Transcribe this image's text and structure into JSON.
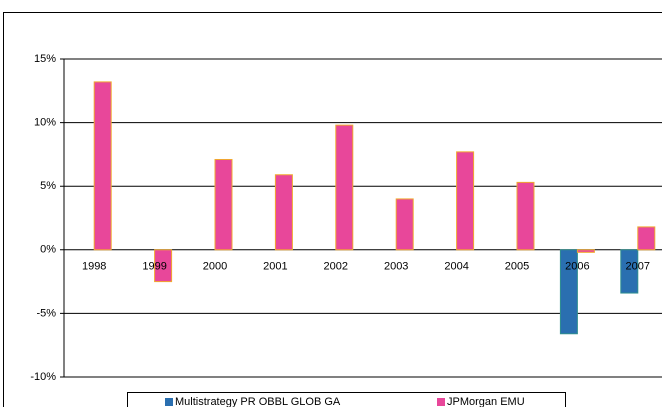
{
  "chart_data": {
    "type": "bar",
    "categories": [
      "1998",
      "1999",
      "2000",
      "2001",
      "2002",
      "2003",
      "2004",
      "2005",
      "2006",
      "2007"
    ],
    "series": [
      {
        "name": "Multistrategy PR OBBL GLOB GA",
        "color": "#2a6fb0",
        "border": "#2f8f8f",
        "values": [
          null,
          null,
          null,
          null,
          null,
          null,
          null,
          null,
          -6.6,
          -3.4
        ]
      },
      {
        "name": "JPMorgan EMU",
        "color": "#e8479a",
        "border": "#f0a830",
        "values": [
          13.2,
          -2.5,
          7.1,
          5.9,
          9.8,
          4.0,
          7.7,
          5.3,
          -0.2,
          1.8
        ]
      }
    ],
    "ylim": [
      -10,
      15
    ],
    "yticks": [
      {
        "value": -10,
        "label": "-10%"
      },
      {
        "value": -5,
        "label": "-5%"
      },
      {
        "value": 0,
        "label": "0%"
      },
      {
        "value": 5,
        "label": "5%"
      },
      {
        "value": 10,
        "label": "10%"
      },
      {
        "value": 15,
        "label": "15%"
      }
    ],
    "grid": true
  }
}
